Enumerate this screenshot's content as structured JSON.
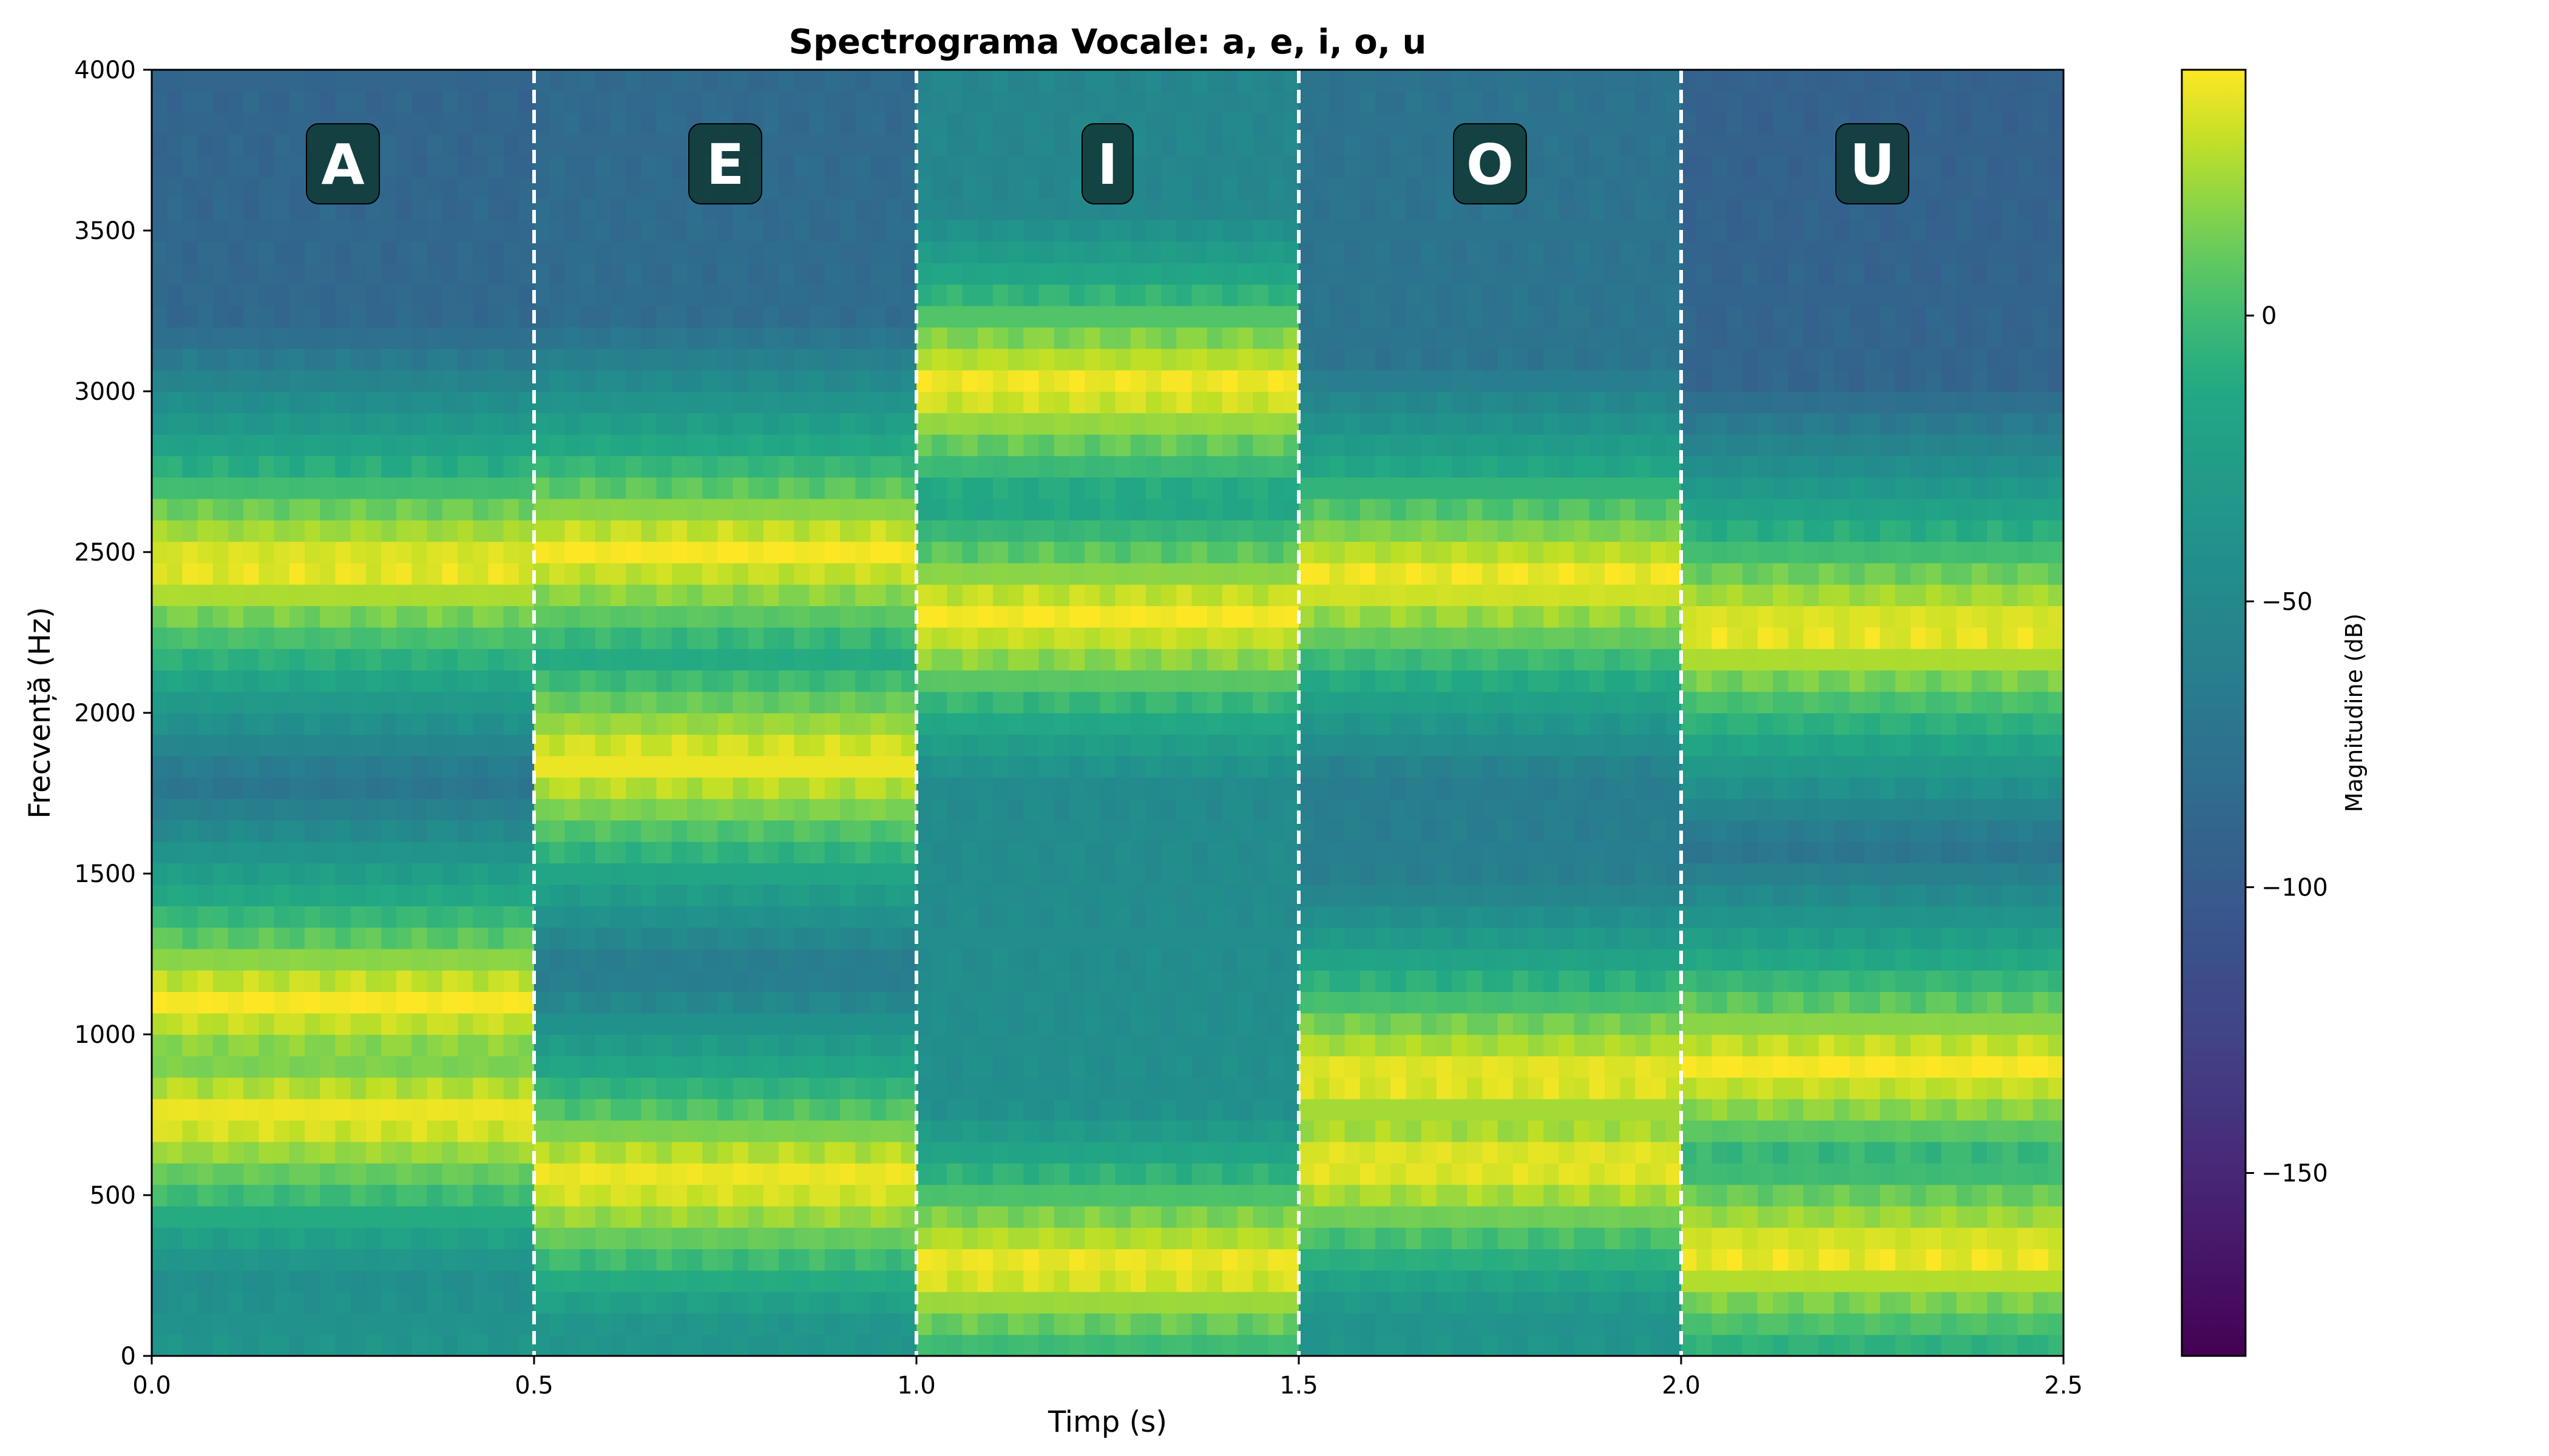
{
  "chart_data": {
    "type": "heatmap",
    "title": "Spectrograma Vocale: a, e, i, o, u",
    "xlabel": "Timp (s)",
    "ylabel": "Frecvență (Hz)",
    "xlim": [
      0,
      2.5
    ],
    "ylim": [
      0,
      4000
    ],
    "xticks": [
      "0.0",
      "0.5",
      "1.0",
      "1.5",
      "2.0",
      "2.5"
    ],
    "yticks": [
      "0",
      "500",
      "1000",
      "1500",
      "2000",
      "2500",
      "3000",
      "3500",
      "4000"
    ],
    "colormap": "viridis",
    "colorbar": {
      "label": "Magnitudine (dB)",
      "range": [
        -182,
        43
      ],
      "ticks": [
        "0",
        "−50",
        "−100",
        "−150"
      ],
      "tick_values": [
        0,
        -50,
        -100,
        -150
      ]
    },
    "segments": [
      {
        "label": "A",
        "t_start": 0.0,
        "t_end": 0.5,
        "formants": [
          750,
          1100,
          2460
        ],
        "high_freq_db": -95
      },
      {
        "label": "E",
        "t_start": 0.5,
        "t_end": 1.0,
        "formants": [
          550,
          1850,
          2500
        ],
        "high_freq_db": -90
      },
      {
        "label": "I",
        "t_start": 1.0,
        "t_end": 1.5,
        "formants": [
          280,
          2300,
          3020
        ],
        "high_freq_db": -55
      },
      {
        "label": "O",
        "t_start": 1.5,
        "t_end": 2.0,
        "formants": [
          600,
          870,
          2420
        ],
        "high_freq_db": -80
      },
      {
        "label": "U",
        "t_start": 2.0,
        "t_end": 2.5,
        "formants": [
          320,
          900,
          2260
        ],
        "high_freq_db": -100
      }
    ],
    "boundaries": [
      0.5,
      1.0,
      1.5,
      2.0
    ],
    "boundary_style": "white dashed"
  }
}
